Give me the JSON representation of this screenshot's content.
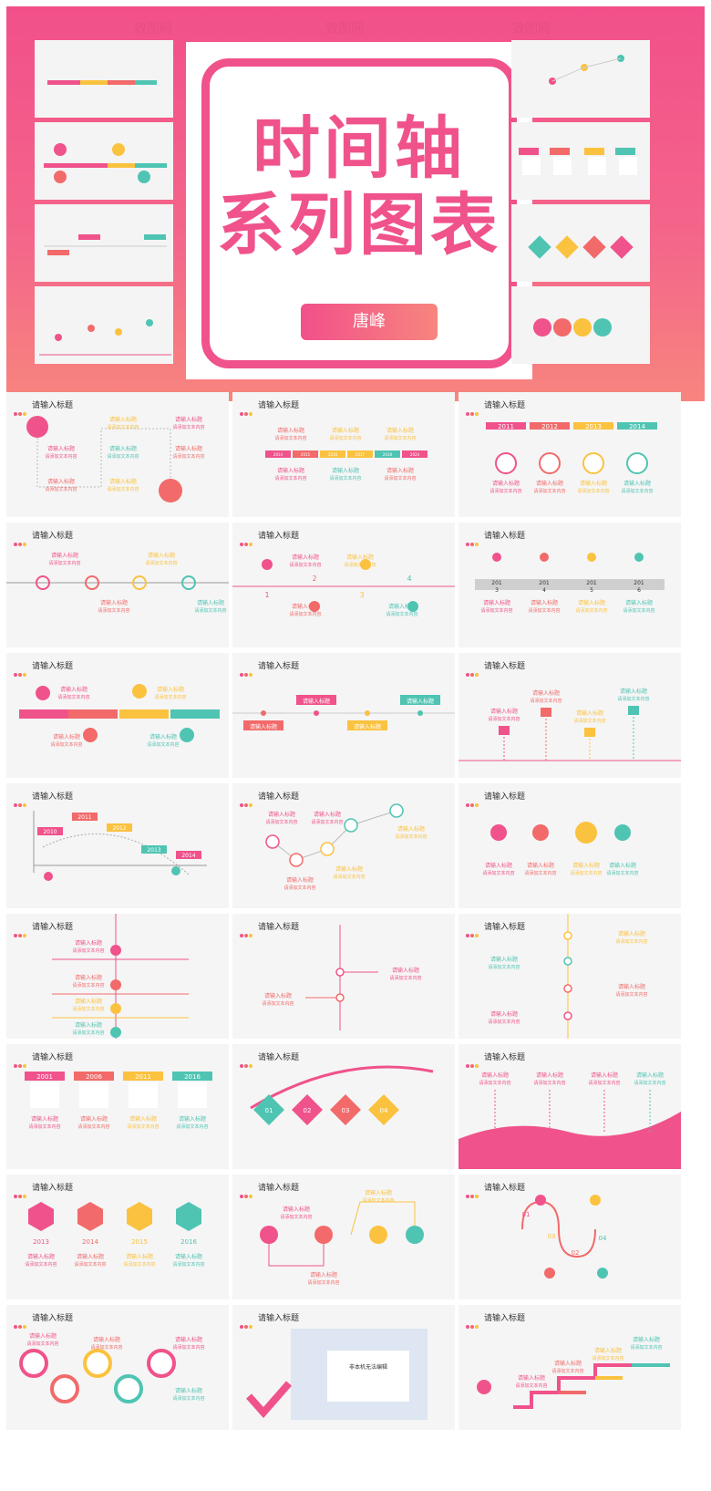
{
  "hero": {
    "title_line1": "时间轴",
    "title_line2": "系列图表",
    "author": "唐峰",
    "watermark": "致图网"
  },
  "slide_title": "请输入标题",
  "slide_subtitle": "请添加文本内容",
  "colors": {
    "pink": "#f0528b",
    "red": "#f26a6a",
    "yellow": "#fbc23f",
    "teal": "#4fc4b3",
    "gray": "#cccccc"
  },
  "years_a": [
    "2011",
    "2012",
    "2013",
    "2014"
  ],
  "years_b": [
    "2001",
    "2006",
    "2011",
    "2016"
  ],
  "years_c": [
    "2013",
    "2014",
    "2015",
    "2016"
  ],
  "years_d": [
    "2010",
    "2011",
    "2012",
    "2013",
    "2014"
  ],
  "steps": [
    "01",
    "02",
    "03",
    "04"
  ],
  "numbers": [
    "1",
    "2",
    "3",
    "4"
  ],
  "split_years": [
    "201\n3",
    "201\n4",
    "201\n5",
    "201\n6"
  ],
  "word_doc": "非本机无法编辑"
}
